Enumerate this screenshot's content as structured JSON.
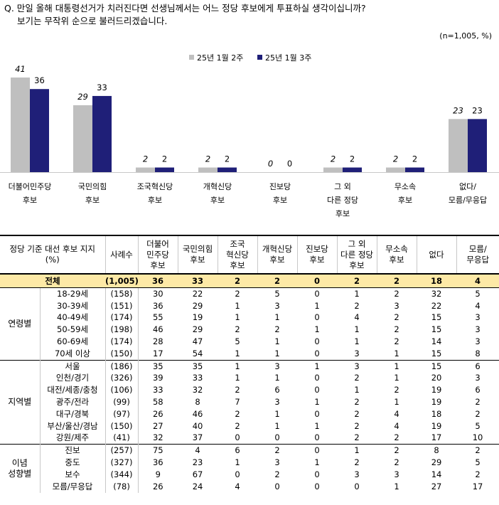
{
  "question": {
    "line1": "Q. 만일 올해 대통령선거가 치러진다면 선생님께서는 어느 정당 후보에게 투표하실 생각이십니까?",
    "line2": "보기는 무작위 순으로 불러드리겠습니다."
  },
  "sample_note": "(n=1,005, %)",
  "colors": {
    "series1": "#bfbfbf",
    "series2": "#1f1f78",
    "total_row": "#fde9a6"
  },
  "chart_data": {
    "type": "bar",
    "categories": [
      [
        "더불어민주당",
        "후보"
      ],
      [
        "국민의힘",
        "후보"
      ],
      [
        "조국혁신당",
        "후보"
      ],
      [
        "개혁신당",
        "후보"
      ],
      [
        "진보당",
        "후보"
      ],
      [
        "그 외",
        "다른 정당",
        "후보"
      ],
      [
        "무소속",
        "후보"
      ],
      [
        "없다/",
        "모름/무응답"
      ]
    ],
    "series": [
      {
        "name": "25년 1월 2주",
        "values": [
          41,
          29,
          2,
          2,
          0,
          2,
          2,
          23
        ]
      },
      {
        "name": "25년 1월 3주",
        "values": [
          36,
          33,
          2,
          2,
          0,
          2,
          2,
          23
        ]
      }
    ],
    "ylim": [
      0,
      45
    ],
    "legend_position": "top-center"
  },
  "table": {
    "header": {
      "label": [
        "정당 기준 대선 후보 지지",
        "(%)"
      ],
      "count": "사례수",
      "columns": [
        [
          "더불어",
          "민주당",
          "후보"
        ],
        [
          "국민의힘",
          "후보"
        ],
        [
          "조국",
          "혁신당",
          "후보"
        ],
        [
          "개혁신당",
          "후보"
        ],
        [
          "진보당",
          "후보"
        ],
        [
          "그 외",
          "다른 정당",
          "후보"
        ],
        [
          "무소속",
          "후보"
        ],
        [
          "없다"
        ],
        [
          "모름/",
          "무응답"
        ]
      ]
    },
    "total": {
      "label": "전체",
      "count": "(1,005)",
      "values": [
        "36",
        "33",
        "2",
        "2",
        "0",
        "2",
        "2",
        "18",
        "4"
      ]
    },
    "groups": [
      {
        "name": [
          "연령별"
        ],
        "rows": [
          {
            "label": "18-29세",
            "count": "(158)",
            "values": [
              "30",
              "22",
              "2",
              "5",
              "0",
              "1",
              "2",
              "32",
              "5"
            ]
          },
          {
            "label": "30-39세",
            "count": "(151)",
            "values": [
              "36",
              "29",
              "1",
              "3",
              "1",
              "2",
              "3",
              "22",
              "4"
            ]
          },
          {
            "label": "40-49세",
            "count": "(174)",
            "values": [
              "55",
              "19",
              "1",
              "1",
              "0",
              "4",
              "2",
              "15",
              "3"
            ]
          },
          {
            "label": "50-59세",
            "count": "(198)",
            "values": [
              "46",
              "29",
              "2",
              "2",
              "1",
              "1",
              "2",
              "15",
              "3"
            ]
          },
          {
            "label": "60-69세",
            "count": "(174)",
            "values": [
              "28",
              "47",
              "5",
              "1",
              "0",
              "1",
              "2",
              "14",
              "3"
            ]
          },
          {
            "label": "70세 이상",
            "count": "(150)",
            "values": [
              "17",
              "54",
              "1",
              "1",
              "0",
              "3",
              "1",
              "15",
              "8"
            ]
          }
        ]
      },
      {
        "name": [
          "지역별"
        ],
        "rows": [
          {
            "label": "서울",
            "count": "(186)",
            "values": [
              "35",
              "35",
              "1",
              "3",
              "1",
              "3",
              "1",
              "15",
              "6"
            ]
          },
          {
            "label": "인천/경기",
            "count": "(326)",
            "values": [
              "39",
              "33",
              "1",
              "1",
              "0",
              "2",
              "1",
              "20",
              "3"
            ]
          },
          {
            "label": "대전/세종/충청",
            "count": "(106)",
            "values": [
              "33",
              "32",
              "2",
              "6",
              "0",
              "1",
              "2",
              "19",
              "6"
            ]
          },
          {
            "label": "광주/전라",
            "count": "(99)",
            "values": [
              "58",
              "8",
              "7",
              "3",
              "1",
              "2",
              "1",
              "19",
              "2"
            ]
          },
          {
            "label": "대구/경북",
            "count": "(97)",
            "values": [
              "26",
              "46",
              "2",
              "1",
              "0",
              "2",
              "4",
              "18",
              "2"
            ]
          },
          {
            "label": "부산/울산/경남",
            "count": "(150)",
            "values": [
              "27",
              "40",
              "2",
              "1",
              "1",
              "2",
              "4",
              "19",
              "5"
            ]
          },
          {
            "label": "강원/제주",
            "count": "(41)",
            "values": [
              "32",
              "37",
              "0",
              "0",
              "0",
              "2",
              "2",
              "17",
              "10"
            ]
          }
        ]
      },
      {
        "name": [
          "이념",
          "성향별"
        ],
        "rows": [
          {
            "label": "진보",
            "count": "(257)",
            "values": [
              "75",
              "4",
              "6",
              "2",
              "0",
              "1",
              "2",
              "8",
              "2"
            ]
          },
          {
            "label": "중도",
            "count": "(327)",
            "values": [
              "36",
              "23",
              "1",
              "3",
              "1",
              "2",
              "2",
              "29",
              "5"
            ]
          },
          {
            "label": "보수",
            "count": "(344)",
            "values": [
              "9",
              "67",
              "0",
              "2",
              "0",
              "3",
              "3",
              "14",
              "2"
            ]
          },
          {
            "label": "모름/무응답",
            "count": "(78)",
            "values": [
              "26",
              "24",
              "4",
              "0",
              "0",
              "0",
              "1",
              "27",
              "17"
            ]
          }
        ]
      }
    ]
  }
}
